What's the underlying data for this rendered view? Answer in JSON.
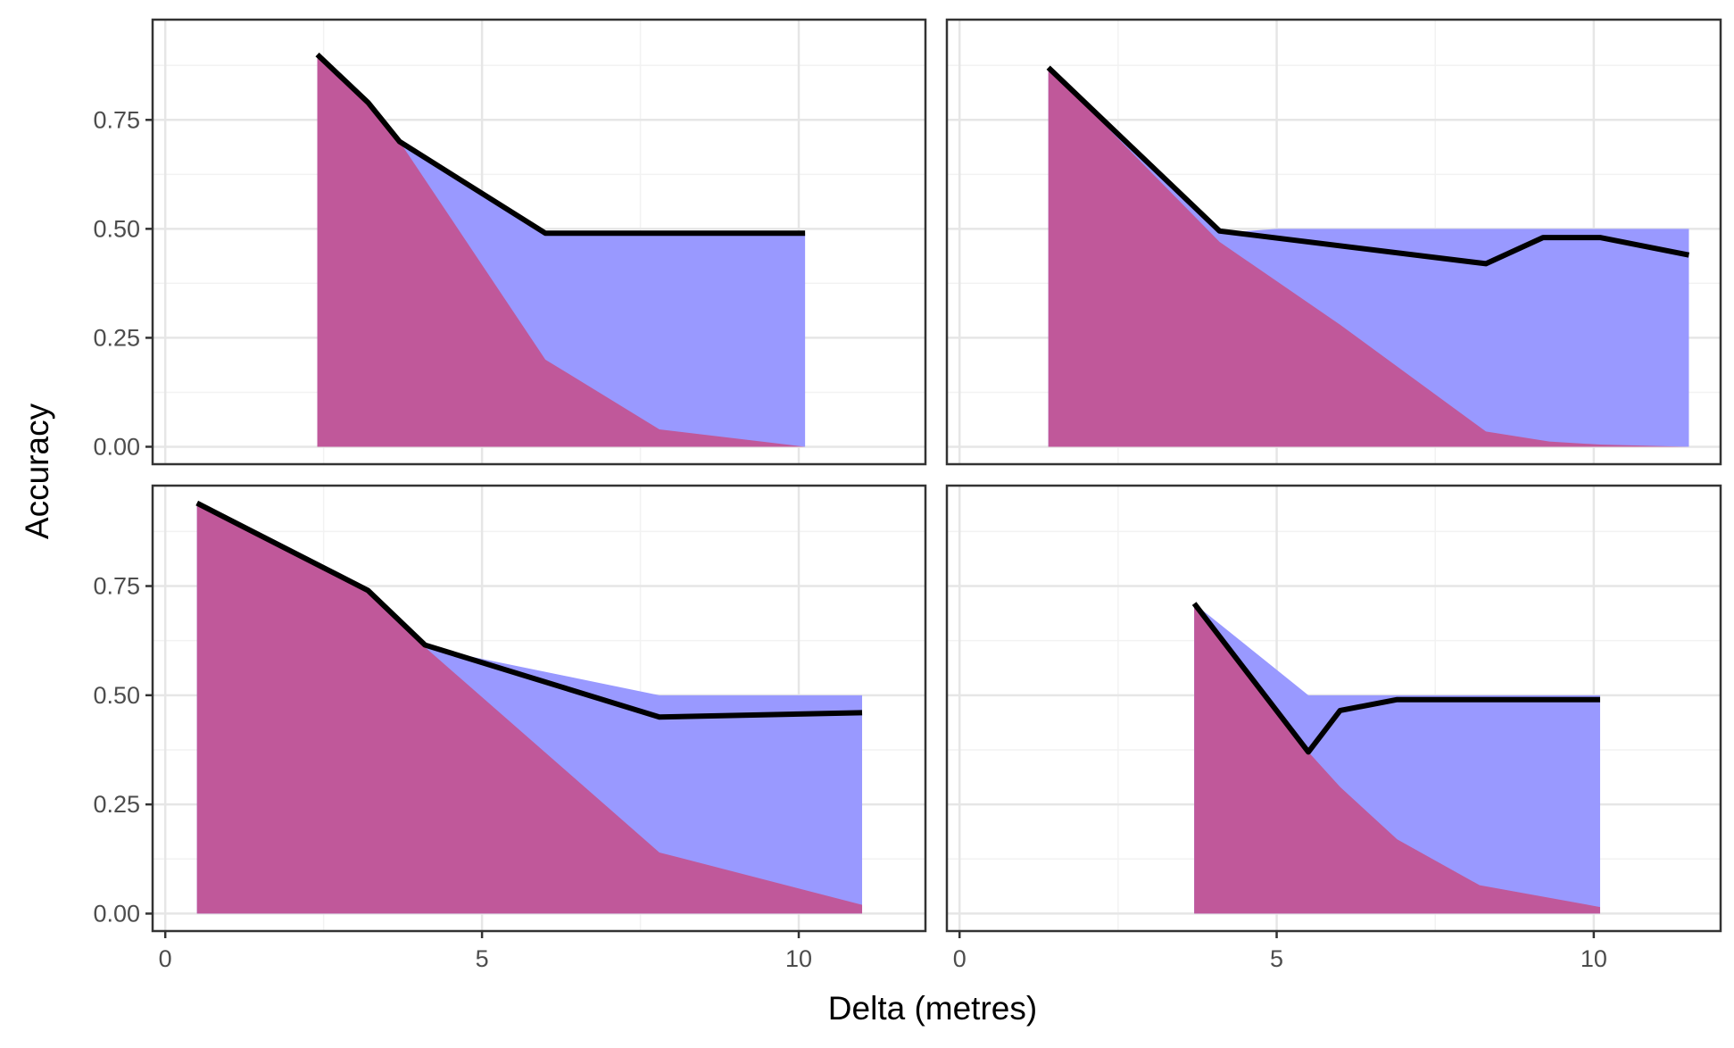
{
  "figure": {
    "xlabel": "Delta (metres)",
    "ylabel": "Accuracy"
  },
  "colors": {
    "upper_area": "#9999ff",
    "lower_area": "#c0589a",
    "line": "#000000",
    "grid_major": "#e6e6e6",
    "grid_minor": "#f2f2f2",
    "panel_border": "#333333",
    "tick_text": "#4d4d4d"
  },
  "chart_data": [
    {
      "type": "area",
      "panel": "top-left",
      "xlim": [
        -0.2,
        12.0
      ],
      "ylim": [
        -0.04,
        0.98
      ],
      "xticks": [
        0,
        5,
        10
      ],
      "yticks": [
        0.0,
        0.25,
        0.5,
        0.75
      ],
      "ytick_labels": [
        "0.00",
        "0.25",
        "0.50",
        "0.75"
      ],
      "series": [
        {
          "role": "upper-area",
          "x": [
            2.4,
            3.2,
            3.7,
            6.0,
            10.1
          ],
          "y": [
            0.9,
            0.79,
            0.7,
            0.49,
            0.49
          ]
        },
        {
          "role": "lower-area",
          "x": [
            2.4,
            3.2,
            3.7,
            6.0,
            7.8,
            10.1
          ],
          "y": [
            0.9,
            0.79,
            0.7,
            0.2,
            0.04,
            0.0
          ]
        },
        {
          "role": "line",
          "x": [
            2.4,
            3.2,
            3.7,
            6.0,
            10.1
          ],
          "y": [
            0.9,
            0.79,
            0.7,
            0.49,
            0.49
          ]
        }
      ]
    },
    {
      "type": "area",
      "panel": "top-right",
      "xlim": [
        -0.2,
        12.0
      ],
      "ylim": [
        -0.04,
        0.98
      ],
      "xticks": [
        0,
        5,
        10
      ],
      "yticks": [
        0.0,
        0.25,
        0.5,
        0.75
      ],
      "ytick_labels": [
        "0.00",
        "0.25",
        "0.50",
        "0.75"
      ],
      "series": [
        {
          "role": "upper-area",
          "x": [
            1.4,
            4.1,
            5.0,
            8.3,
            11.5
          ],
          "y": [
            0.87,
            0.49,
            0.5,
            0.5,
            0.5
          ]
        },
        {
          "role": "lower-area",
          "x": [
            1.4,
            4.1,
            6.0,
            8.3,
            9.3,
            10.1,
            11.5
          ],
          "y": [
            0.87,
            0.47,
            0.28,
            0.035,
            0.012,
            0.005,
            0.0
          ]
        },
        {
          "role": "line",
          "x": [
            1.4,
            4.1,
            8.3,
            9.2,
            10.1,
            11.5
          ],
          "y": [
            0.87,
            0.495,
            0.42,
            0.48,
            0.48,
            0.44
          ]
        }
      ]
    },
    {
      "type": "area",
      "panel": "bottom-left",
      "xlim": [
        -0.2,
        12.0
      ],
      "ylim": [
        -0.04,
        0.98
      ],
      "xticks": [
        0,
        5,
        10
      ],
      "xtick_labels": [
        "0",
        "5",
        "10"
      ],
      "yticks": [
        0.0,
        0.25,
        0.5,
        0.75
      ],
      "ytick_labels": [
        "0.00",
        "0.25",
        "0.50",
        "0.75"
      ],
      "series": [
        {
          "role": "upper-area",
          "x": [
            0.5,
            3.2,
            4.1,
            7.8,
            11.0
          ],
          "y": [
            0.94,
            0.74,
            0.61,
            0.5,
            0.5
          ]
        },
        {
          "role": "lower-area",
          "x": [
            0.5,
            3.2,
            4.1,
            7.8,
            11.0
          ],
          "y": [
            0.94,
            0.74,
            0.61,
            0.14,
            0.02
          ]
        },
        {
          "role": "line",
          "x": [
            0.5,
            3.2,
            4.1,
            7.8,
            11.0
          ],
          "y": [
            0.94,
            0.74,
            0.615,
            0.45,
            0.46
          ]
        }
      ]
    },
    {
      "type": "area",
      "panel": "bottom-right",
      "xlim": [
        -0.2,
        12.0
      ],
      "ylim": [
        -0.04,
        0.98
      ],
      "xticks": [
        0,
        5,
        10
      ],
      "xtick_labels": [
        "0",
        "5",
        "10"
      ],
      "yticks": [
        0.0,
        0.25,
        0.5,
        0.75
      ],
      "ytick_labels": [
        "0.00",
        "0.25",
        "0.50",
        "0.75"
      ],
      "series": [
        {
          "role": "upper-area",
          "x": [
            3.7,
            5.5,
            10.1
          ],
          "y": [
            0.71,
            0.5,
            0.5
          ]
        },
        {
          "role": "lower-area",
          "x": [
            3.7,
            5.5,
            6.0,
            6.9,
            8.2,
            10.1
          ],
          "y": [
            0.71,
            0.37,
            0.29,
            0.17,
            0.065,
            0.015
          ]
        },
        {
          "role": "line",
          "x": [
            3.7,
            5.5,
            6.0,
            6.9,
            10.1
          ],
          "y": [
            0.71,
            0.37,
            0.465,
            0.49,
            0.49
          ]
        }
      ]
    }
  ]
}
